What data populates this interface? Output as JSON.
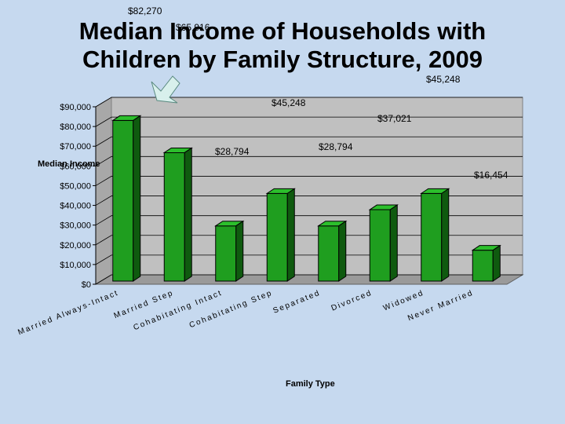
{
  "title_line1": "Median Income of Households with",
  "title_line2": "Children by Family Structure, 2009",
  "chart_data": {
    "type": "bar",
    "title": "Median Income of Households with Children by Family Structure, 2009",
    "xlabel": "Family Type",
    "ylabel": "Median Income",
    "ylim": [
      0,
      90000
    ],
    "yticks": [
      "$0",
      "$10,000",
      "$20,000",
      "$30,000",
      "$40,000",
      "$50,000",
      "$60,000",
      "$70,000",
      "$80,000",
      "$90,000"
    ],
    "categories": [
      "Married Always-Intact",
      "Married Step",
      "Cohabitating Intact",
      "Cohabitating Step",
      "Separated",
      "Divorced",
      "Widowed",
      "Never Married"
    ],
    "values": [
      82270,
      65916,
      28794,
      45248,
      28794,
      37021,
      45248,
      16454
    ],
    "grid": true,
    "bar_color": "#1f9e1f"
  },
  "floating_labels": {
    "l1": "$82,270",
    "l2": "$65,916",
    "l3": "$45,248",
    "l4": "$45,248",
    "l5": "$37,021",
    "l6": "$28,794",
    "l7": "$28,794",
    "l8": "$16,454"
  }
}
